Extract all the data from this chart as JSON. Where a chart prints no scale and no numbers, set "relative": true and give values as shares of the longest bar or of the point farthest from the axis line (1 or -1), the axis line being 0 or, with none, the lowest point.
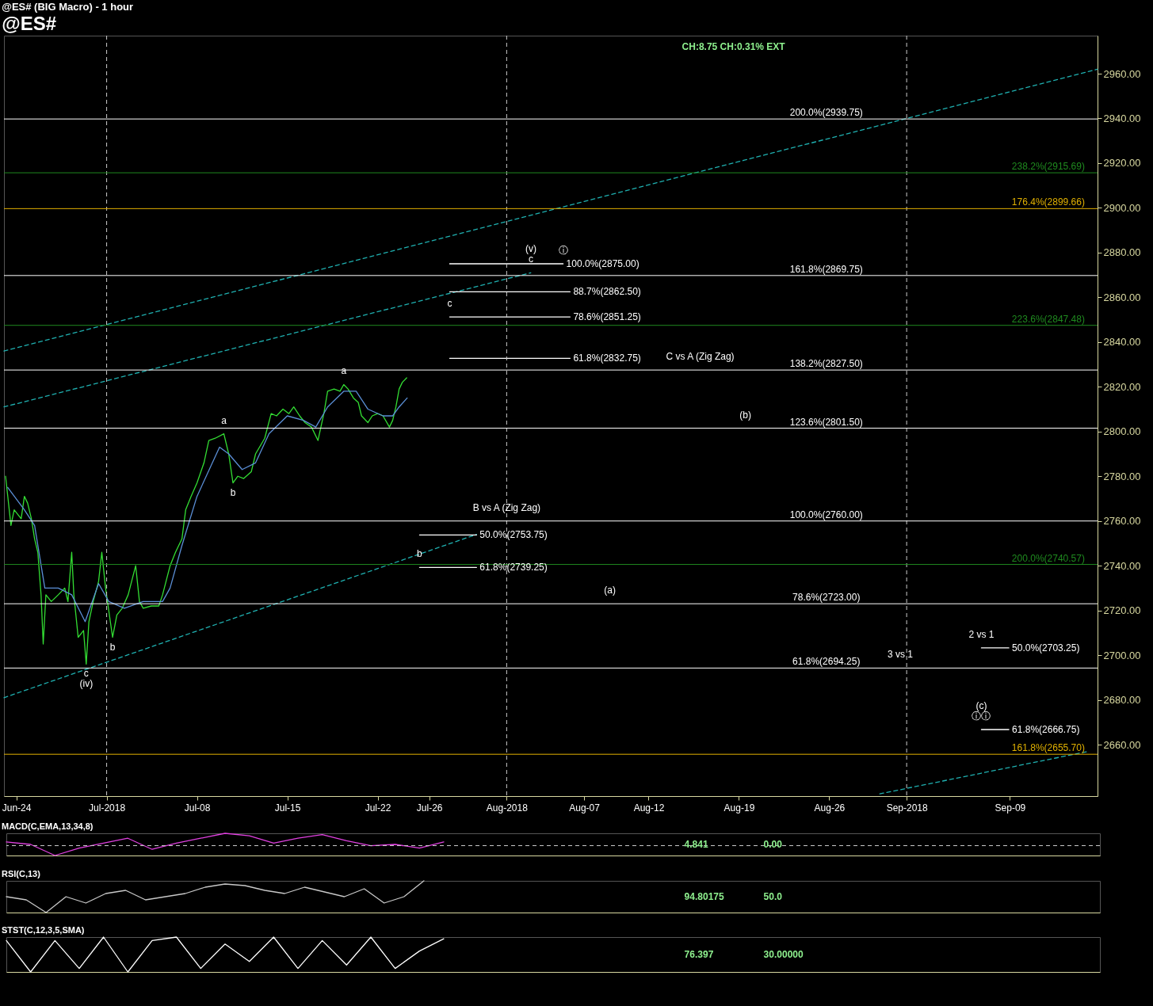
{
  "chart_data": [
    {
      "type": "line",
      "title": "@ES# (BIG Macro) - 1 hour",
      "subtitle": "@ES#",
      "xlim": [
        "2018-06-23T01:00",
        "2018-09-15T19:00"
      ],
      "xticks": [
        {
          "value": "2018-06-24",
          "label": "Jun-24"
        },
        {
          "value": "2018-07-01",
          "label": "Jul-2018"
        },
        {
          "value": "2018-07-08",
          "label": "Jul-08"
        },
        {
          "value": "2018-07-15",
          "label": "Jul-15"
        },
        {
          "value": "2018-07-22",
          "label": "Jul-22"
        },
        {
          "value": "2018-07-26",
          "label": "Jul-26"
        },
        {
          "value": "2018-08-01",
          "label": "Aug-2018"
        },
        {
          "value": "2018-08-07",
          "label": "Aug-07"
        },
        {
          "value": "2018-08-12",
          "label": "Aug-12"
        },
        {
          "value": "2018-08-19",
          "label": "Aug-19"
        },
        {
          "value": "2018-08-26",
          "label": "Aug-26"
        },
        {
          "value": "2018-09-01",
          "label": "Sep-2018"
        },
        {
          "value": "2018-09-09",
          "label": "Sep-09"
        }
      ],
      "ylim": [
        2637,
        2977
      ],
      "yticks": [
        {
          "value": 2660,
          "label": "2660.00"
        },
        {
          "value": 2680,
          "label": "2680.00"
        },
        {
          "value": 2700,
          "label": "2700.00"
        },
        {
          "value": 2720,
          "label": "2720.00"
        },
        {
          "value": 2740,
          "label": "2740.00"
        },
        {
          "value": 2760,
          "label": "2760.00"
        },
        {
          "value": 2780,
          "label": "2780.00"
        },
        {
          "value": 2800,
          "label": "2800.00"
        },
        {
          "value": 2820,
          "label": "2820.00"
        },
        {
          "value": 2840,
          "label": "2840.00"
        },
        {
          "value": 2860,
          "label": "2860.00"
        },
        {
          "value": 2880,
          "label": "2880.00"
        },
        {
          "value": 2900,
          "label": "2900.00"
        },
        {
          "value": 2920,
          "label": "2920.00"
        },
        {
          "value": 2940,
          "label": "2940.00"
        },
        {
          "value": 2960,
          "label": "2960.00"
        }
      ],
      "series": [
        {
          "color": "#33dd33",
          "x": [
            "2018-06-23T04:00",
            "2018-06-23T14:00",
            "2018-06-23T20:00",
            "2018-06-24T09:00",
            "2018-06-24T15:00",
            "2018-06-24T21:00",
            "2018-06-25T04:00",
            "2018-06-25T10:00",
            "2018-06-25T16:00",
            "2018-06-25T22:00",
            "2018-06-26T02:00",
            "2018-06-26T07:00",
            "2018-06-26T17:00",
            "2018-06-27T06:00",
            "2018-06-27T18:00",
            "2018-06-28T00:00",
            "2018-06-28T07:00",
            "2018-06-28T11:00",
            "2018-06-28T19:00",
            "2018-06-29T05:00",
            "2018-06-29T10:00",
            "2018-06-29T15:00",
            "2018-06-29T23:00",
            "2018-06-30T09:00",
            "2018-06-30T15:00",
            "2018-06-30T22:00",
            "2018-07-01T11:00",
            "2018-07-01T19:00",
            "2018-07-02T05:00",
            "2018-07-02T16:00",
            "2018-07-03T06:00",
            "2018-07-03T13:00",
            "2018-07-03T20:00",
            "2018-07-04T11:00",
            "2018-07-05T01:00",
            "2018-07-05T08:00",
            "2018-07-05T22:00",
            "2018-07-06T08:00",
            "2018-07-06T20:00",
            "2018-07-07T03:00",
            "2018-07-07T13:00",
            "2018-07-08T00:00",
            "2018-07-08T13:00",
            "2018-07-08T22:00",
            "2018-07-09T10:00",
            "2018-07-10T02:00",
            "2018-07-10T11:00",
            "2018-07-10T19:00",
            "2018-07-11T04:00",
            "2018-07-11T15:00",
            "2018-07-12T05:00",
            "2018-07-12T13:00",
            "2018-07-13T06:00",
            "2018-07-13T18:00",
            "2018-07-14T04:00",
            "2018-07-14T16:00",
            "2018-07-15T03:00",
            "2018-07-15T12:00",
            "2018-07-15T23:00",
            "2018-07-16T09:00",
            "2018-07-16T21:00",
            "2018-07-17T09:00",
            "2018-07-17T20:00",
            "2018-07-18T03:00",
            "2018-07-18T15:00",
            "2018-07-19T02:00",
            "2018-07-19T09:00",
            "2018-07-19T17:00",
            "2018-07-20T03:00",
            "2018-07-20T12:00",
            "2018-07-20T18:00",
            "2018-07-21T06:00",
            "2018-07-21T14:00",
            "2018-07-22T00:00",
            "2018-07-22T10:00",
            "2018-07-22T22:00",
            "2018-07-23T04:00",
            "2018-07-23T10:00",
            "2018-07-23T16:00",
            "2018-07-23T22:00",
            "2018-07-24T06:00"
          ],
          "values": [
            2780,
            2758,
            2765,
            2761,
            2771,
            2768,
            2761,
            2752,
            2746,
            2727,
            2705,
            2727,
            2724,
            2727,
            2730,
            2724,
            2746,
            2727,
            2708,
            2711,
            2696,
            2715,
            2724,
            2733,
            2746,
            2730,
            2708,
            2718,
            2721,
            2727,
            2740,
            2724,
            2721,
            2722,
            2722,
            2727,
            2740,
            2746,
            2752,
            2765,
            2771,
            2777,
            2786,
            2796,
            2797,
            2799,
            2790,
            2777,
            2780,
            2779,
            2782,
            2790,
            2797,
            2808,
            2807,
            2810,
            2808,
            2811,
            2807,
            2804,
            2802,
            2796,
            2808,
            2818,
            2819,
            2818,
            2821,
            2819,
            2815,
            2813,
            2807,
            2804,
            2807,
            2808,
            2807,
            2802,
            2805,
            2811,
            2819,
            2822,
            2824
          ]
        },
        {
          "color": "#5b8fd6",
          "x": [
            "2018-06-23T08:00",
            "2018-06-24T15:00",
            "2018-06-25T10:00",
            "2018-06-26T05:00",
            "2018-06-27T06:00",
            "2018-06-28T07:00",
            "2018-06-29T08:00",
            "2018-06-30T09:00",
            "2018-07-01T04:00",
            "2018-07-02T09:00",
            "2018-07-03T20:00",
            "2018-07-05T08:00",
            "2018-07-05T22:00",
            "2018-07-06T20:00",
            "2018-07-08T00:00",
            "2018-07-09T18:00",
            "2018-07-10T11:00",
            "2018-07-11T12:00",
            "2018-07-12T13:00",
            "2018-07-13T14:00",
            "2018-07-15T00:00",
            "2018-07-16T06:00",
            "2018-07-17T05:00",
            "2018-07-18T03:00",
            "2018-07-19T09:00",
            "2018-07-20T08:00",
            "2018-07-21T06:00",
            "2018-07-22T10:00",
            "2018-07-23T04:00",
            "2018-07-23T16:00",
            "2018-07-24T07:00"
          ],
          "values": [
            2775,
            2765,
            2758,
            2730,
            2730,
            2727,
            2715,
            2732,
            2724,
            2721,
            2724,
            2724,
            2730,
            2749,
            2771,
            2793,
            2790,
            2783,
            2786,
            2799,
            2807,
            2805,
            2802,
            2811,
            2818,
            2818,
            2810,
            2807,
            2807,
            2811,
            2815
          ]
        },
        {
          "color": "#1fb0b0",
          "line_style": "dashed",
          "x": [
            "2018-06-23T01:00",
            "2018-09-15T19:00"
          ],
          "values": [
            2836,
            2962
          ]
        },
        {
          "color": "#1fb0b0",
          "line_style": "dashed",
          "x": [
            "2018-06-23T01:00",
            "2018-08-02T21:00"
          ],
          "values": [
            2811,
            2871
          ]
        },
        {
          "color": "#1fb0b0",
          "line_style": "dashed",
          "x": [
            "2018-06-23T01:00",
            "2018-07-29T16:00"
          ],
          "values": [
            2681,
            2754
          ]
        },
        {
          "color": "#1fb0b0",
          "line_style": "dashed",
          "x": [
            "2018-08-29T22:00",
            "2018-09-15T02:00"
          ],
          "values": [
            2638,
            2657
          ]
        },
        {
          "name": "100.0%(2875.00)",
          "color": "#ffffff",
          "x": [
            "2018-07-27T14:00",
            "2018-08-05T09:00"
          ],
          "values": [
            2875,
            2875
          ]
        },
        {
          "name": "88.7%(2862.50)",
          "color": "#ffffff",
          "x": [
            "2018-07-27T14:00",
            "2018-08-05T22:00"
          ],
          "values": [
            2862.5,
            2862.5
          ]
        },
        {
          "name": "78.6%(2851.25)",
          "color": "#ffffff",
          "x": [
            "2018-07-27T14:00",
            "2018-08-05T22:00"
          ],
          "values": [
            2851.25,
            2851.25
          ]
        },
        {
          "name": "61.8%(2832.75)",
          "color": "#ffffff",
          "x": [
            "2018-07-27T14:00",
            "2018-08-05T22:00"
          ],
          "values": [
            2832.75,
            2832.75
          ]
        },
        {
          "name": "50.0%(2753.75)",
          "color": "#ffffff",
          "x": [
            "2018-07-25T06:00",
            "2018-07-29T16:00"
          ],
          "values": [
            2753.75,
            2753.75
          ]
        },
        {
          "name": "61.8%(2739.25)",
          "color": "#ffffff",
          "x": [
            "2018-07-25T06:00",
            "2018-07-29T16:00"
          ],
          "values": [
            2739.25,
            2739.25
          ]
        },
        {
          "name": "50.0%(2703.25)",
          "color": "#ffffff",
          "x": [
            "2018-09-06T19:00",
            "2018-09-08T22:00"
          ],
          "values": [
            2703.25,
            2703.25
          ]
        },
        {
          "name": "61.8%(2666.75)",
          "color": "#ffffff",
          "x": [
            "2018-09-06T19:00",
            "2018-09-08T22:00"
          ],
          "values": [
            2666.75,
            2666.75
          ]
        }
      ],
      "ref_lines": [
        {
          "axis": "x",
          "value": "2018-07-01",
          "color": "#cccccc",
          "line_style": "dashed"
        },
        {
          "axis": "x",
          "value": "2018-08-01",
          "color": "#cccccc",
          "line_style": "dashed"
        },
        {
          "axis": "x",
          "value": "2018-09-01",
          "color": "#cccccc",
          "line_style": "dashed"
        },
        {
          "axis": "y",
          "value": 2939.75,
          "label": "200.0%(2939.75)"
        },
        {
          "axis": "y",
          "value": 2869.75,
          "label": "161.8%(2869.75)"
        },
        {
          "axis": "y",
          "value": 2827.5,
          "label": "138.2%(2827.50)"
        },
        {
          "axis": "y",
          "value": 2801.5,
          "label": "123.6%(2801.50)"
        },
        {
          "axis": "y",
          "value": 2760,
          "label": "100.0%(2760.00)"
        },
        {
          "axis": "y",
          "value": 2723,
          "label": "78.6%(2723.00)"
        },
        {
          "axis": "y",
          "value": 2694.25,
          "label": "61.8%(2694.25)"
        },
        {
          "axis": "y",
          "value": 2915.69,
          "label": "238.2%(2915.69)",
          "color": "#1f8a1f"
        },
        {
          "axis": "y",
          "value": 2847.48,
          "label": "223.6%(2847.48)",
          "color": "#1f8a1f"
        },
        {
          "axis": "y",
          "value": 2740.57,
          "label": "200.0%(2740.57)",
          "color": "#1f8a1f"
        },
        {
          "axis": "y",
          "value": 2899.66,
          "label": "176.4%(2899.66)",
          "color": "#e0b000"
        },
        {
          "axis": "y",
          "value": 2655.7,
          "label": "161.8%(2655.70)",
          "color": "#e0b000"
        }
      ],
      "annotations": [
        "CH:8.75  CH:0.31%  EXT",
        {
          "text": "C vs A (Zig Zag)",
          "x": "2018-08-16T00:00",
          "y": 2827.5
        },
        {
          "text": "B vs A (Zig Zag)",
          "x": "2018-08-01T00:00",
          "y": 2760
        },
        {
          "text": "2 vs 1",
          "x": "2018-09-06T19:00",
          "y": 2703.25
        },
        {
          "text": "3 vs 1",
          "x": "2018-08-31T12:00",
          "y": 2694.25
        },
        {
          "text": "(a)",
          "x": "2018-08-09T00:00",
          "y": 2723
        },
        {
          "text": "(b)",
          "x": "2018-08-19T12:00",
          "y": 2801.5
        },
        {
          "text": "a",
          "x": "2018-07-19T09:00",
          "y": 2821
        },
        {
          "text": "a",
          "x": "2018-07-10T02:00",
          "y": 2799
        },
        {
          "text": "b",
          "x": "2018-07-10T19:00",
          "y": 2777
        },
        {
          "text": "c",
          "x": "2018-06-29T10:00",
          "y": 2696
        },
        {
          "text": "(iv)",
          "x": "2018-06-29T10:00",
          "y": 2696
        },
        {
          "text": "b",
          "x": "2018-07-01T11:00",
          "y": 2708
        },
        {
          "text": "c",
          "x": "2018-07-27T14:00",
          "y": 2851.25
        },
        {
          "text": "c",
          "x": "2018-08-02T21:00",
          "y": 2871
        },
        {
          "text": "(v)",
          "x": "2018-08-02T21:00",
          "y": 2871
        },
        {
          "text": "ⓘ",
          "x": "2018-08-05T09:00",
          "y": 2875
        },
        {
          "text": "b",
          "x": "2018-07-25T06:00",
          "y": 2739.25
        },
        {
          "text": "ⓘⓘ",
          "x": "2018-09-06T19:00",
          "y": 2666.75
        },
        {
          "text": "(c)",
          "x": "2018-09-06T19:00",
          "y": 2666.75
        }
      ]
    },
    {
      "type": "line",
      "title": "MACD(C,EMA,13,34,8)",
      "relative": true,
      "categories": [
        null,
        null,
        null,
        null,
        null,
        null,
        null,
        null,
        null,
        null,
        null,
        null,
        null,
        null,
        null,
        null,
        null,
        null,
        null,
        null,
        null,
        null,
        null,
        null,
        null,
        null,
        null,
        null,
        null,
        null,
        null,
        null,
        null,
        null,
        null,
        null,
        null,
        null,
        null,
        null,
        null,
        null,
        null,
        null,
        null,
        null
      ],
      "series": [
        {
          "color": "#e040e0",
          "values": [
            0.3,
            0.1,
            -0.8,
            -0.2,
            0.2,
            0.6,
            -0.3,
            0.2,
            0.6,
            1,
            0.8,
            0.2,
            0.6,
            0.9,
            0.4,
            0,
            0.1,
            -0.2,
            0.3,
            null,
            null,
            null,
            null,
            null,
            null,
            null,
            null,
            null,
            null,
            null,
            null,
            null,
            null,
            null,
            null,
            null,
            null,
            null,
            null,
            null,
            null,
            null,
            null,
            null,
            null,
            null
          ]
        }
      ],
      "ref_lines": [
        {
          "axis": "y",
          "value": 0,
          "color": "#cccccc",
          "line_style": "dashed"
        }
      ],
      "annotations": [
        "4.841",
        "0.00"
      ]
    },
    {
      "type": "line",
      "title": "RSI(C,13)",
      "relative": true,
      "categories": [
        null,
        null,
        null,
        null,
        null,
        null,
        null,
        null,
        null,
        null,
        null,
        null,
        null,
        null,
        null,
        null,
        null,
        null,
        null,
        null,
        null,
        null,
        null,
        null,
        null,
        null,
        null,
        null,
        null,
        null,
        null,
        null,
        null,
        null,
        null,
        null,
        null,
        null,
        null,
        null,
        null,
        null,
        null,
        null,
        null,
        null,
        null,
        null,
        null,
        null,
        null,
        null,
        null,
        null,
        null,
        null
      ],
      "series": [
        {
          "color": "#c8c8c8",
          "values": [
            0.5,
            0.4,
            0,
            0.5,
            0.3,
            0.6,
            0.7,
            0.4,
            0.5,
            0.6,
            0.8,
            0.9,
            0.85,
            0.7,
            0.6,
            0.8,
            0.65,
            0.5,
            0.75,
            0.3,
            0.5,
            1,
            null,
            null,
            null,
            null,
            null,
            null,
            null,
            null,
            null,
            null,
            null,
            null,
            null,
            null,
            null,
            null,
            null,
            null,
            null,
            null,
            null,
            null,
            null,
            null,
            null,
            null,
            null,
            null,
            null,
            null,
            null,
            null,
            null,
            null
          ]
        }
      ],
      "annotations": [
        "94.80175",
        "50.0"
      ]
    },
    {
      "type": "line",
      "title": "STST(C,12,3,5,SMA)",
      "relative": true,
      "categories": [
        null,
        null,
        null,
        null,
        null,
        null,
        null,
        null,
        null,
        null,
        null,
        null,
        null,
        null,
        null,
        null,
        null,
        null,
        null,
        null,
        null,
        null,
        null,
        null,
        null,
        null,
        null,
        null,
        null,
        null,
        null,
        null,
        null,
        null,
        null,
        null,
        null,
        null,
        null,
        null,
        null,
        null,
        null,
        null,
        null,
        null
      ],
      "series": [
        {
          "color": "#ffffff",
          "values": [
            0.9,
            0,
            0.9,
            0.1,
            1,
            0,
            0.9,
            1,
            0.1,
            0.8,
            0.3,
            1,
            0.1,
            0.9,
            0.2,
            1,
            0.1,
            0.6,
            0.95,
            null,
            null,
            null,
            null,
            null,
            null,
            null,
            null,
            null,
            null,
            null,
            null,
            null,
            null,
            null,
            null,
            null,
            null,
            null,
            null,
            null,
            null,
            null,
            null,
            null,
            null,
            null
          ]
        }
      ],
      "annotations": [
        "76.397",
        "30.00000"
      ]
    }
  ]
}
